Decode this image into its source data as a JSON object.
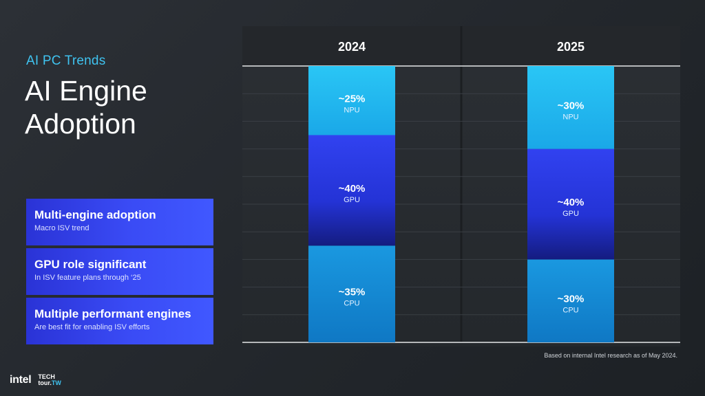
{
  "header": {
    "eyebrow": "AI PC Trends",
    "title_line1": "AI Engine",
    "title_line2": "Adoption"
  },
  "cards": [
    {
      "title": "Multi-engine adoption",
      "subtitle": "Macro ISV trend"
    },
    {
      "title": "GPU role significant",
      "subtitle": "In ISV feature plans through ‘25"
    },
    {
      "title": "Multiple performant engines",
      "subtitle": "Are best fit for enabling ISV efforts"
    }
  ],
  "chart_data": {
    "type": "bar",
    "stacked": true,
    "orientation": "vertical",
    "categories": [
      "2024",
      "2025"
    ],
    "stack_order": [
      "CPU",
      "GPU",
      "NPU"
    ],
    "series": [
      {
        "name": "CPU",
        "values": [
          35,
          30
        ],
        "labels": [
          "~35%",
          "~30%"
        ],
        "color": "#1a8fd8"
      },
      {
        "name": "GPU",
        "values": [
          40,
          40
        ],
        "labels": [
          "~40%",
          "~40%"
        ],
        "color": "#2a3ae6"
      },
      {
        "name": "NPU",
        "values": [
          25,
          30
        ],
        "labels": [
          "~25%",
          "~30%"
        ],
        "color": "#22b8ef"
      }
    ],
    "ylim": [
      0,
      100
    ],
    "grid": true,
    "legend": "none"
  },
  "footnote": "Based on internal Intel research as of May 2024.",
  "branding": {
    "logo": "intel",
    "tour_line1": "TECH",
    "tour_line2": "tour.",
    "tour_suffix": "TW"
  }
}
